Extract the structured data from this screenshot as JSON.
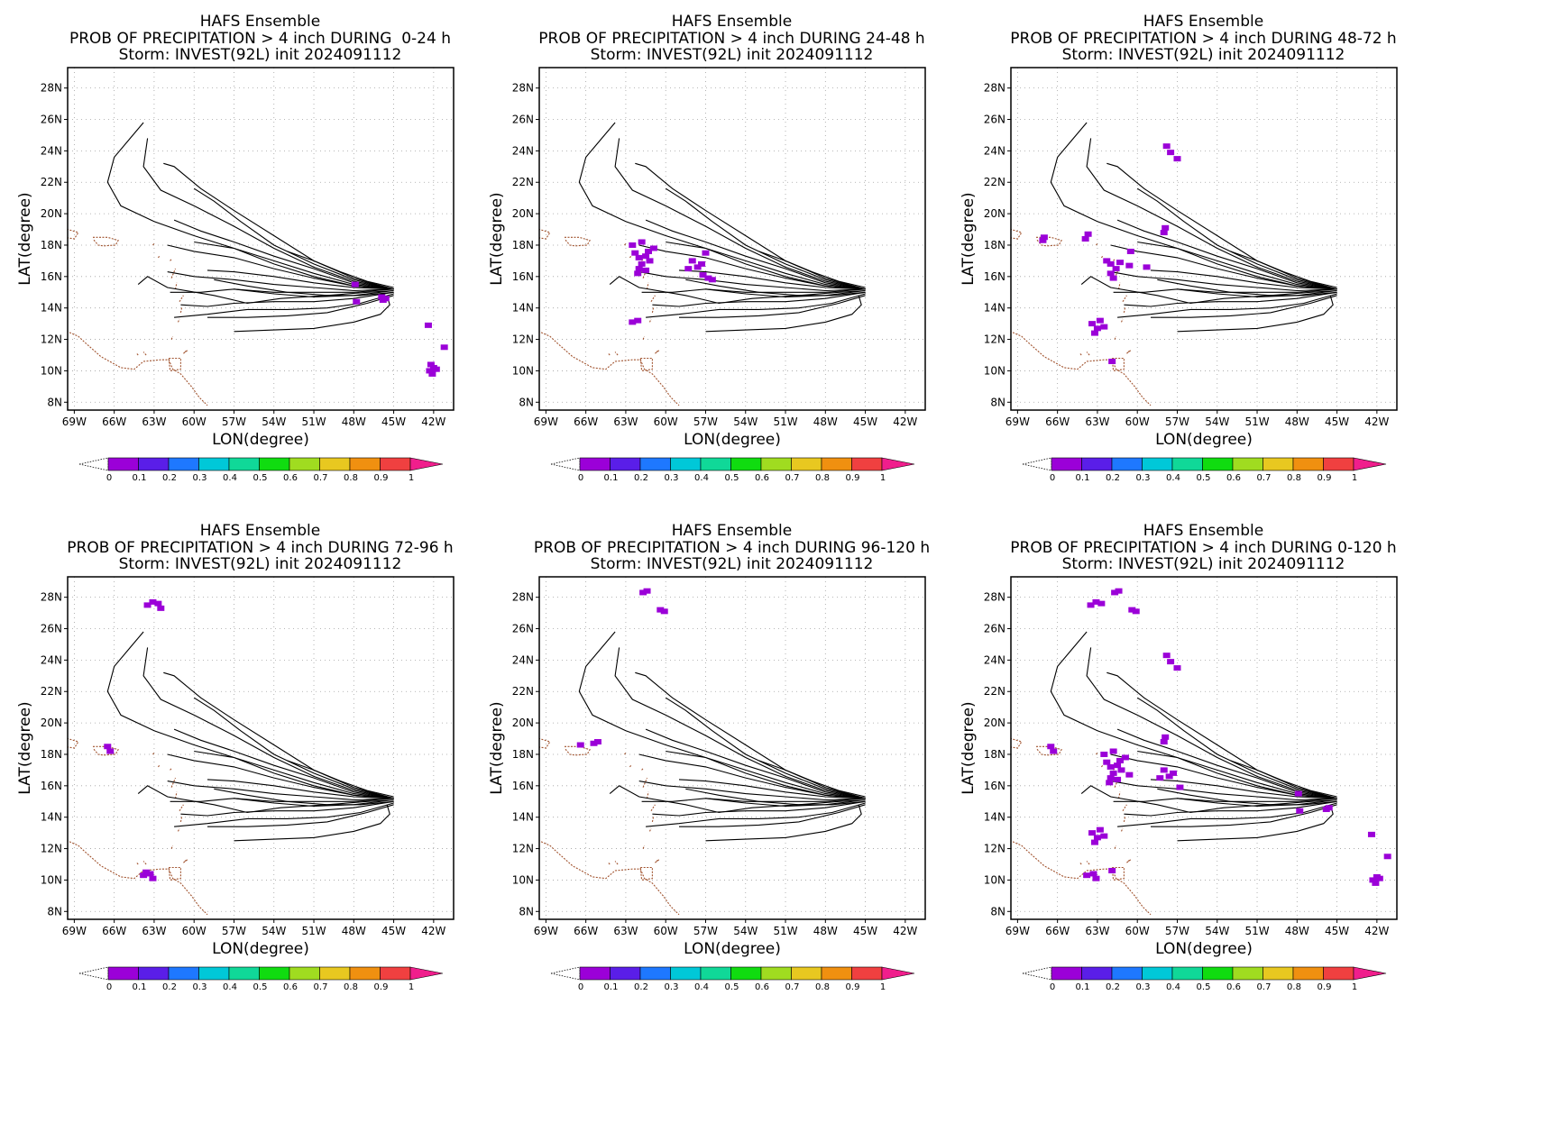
{
  "panel_common": {
    "title": "HAFS Ensemble",
    "storm_line": "Storm: INVEST(92L) init 2024091112",
    "xlabel": "LON(degree)",
    "ylabel": "LAT(degree)",
    "x_ticks": [
      "69W",
      "66W",
      "63W",
      "60W",
      "57W",
      "54W",
      "51W",
      "48W",
      "45W",
      "42W"
    ],
    "y_ticks": [
      "8N",
      "10N",
      "12N",
      "14N",
      "16N",
      "18N",
      "20N",
      "22N",
      "24N",
      "26N",
      "28N"
    ],
    "colorbar_ticks": [
      "0",
      "0.1",
      "0.2",
      "0.3",
      "0.4",
      "0.5",
      "0.6",
      "0.7",
      "0.8",
      "0.9",
      "1"
    ],
    "colorbar_colors": [
      "#9b00d8",
      "#5a1ee8",
      "#1e78ff",
      "#00c8d8",
      "#10d898",
      "#10dc10",
      "#a0dc20",
      "#e8c820",
      "#f09010",
      "#f04040"
    ],
    "overflow_color": "#f01e8c",
    "track_color": "#000000",
    "coast_color": "#a0522d",
    "prob_color": "#9b00d8"
  },
  "panels": [
    {
      "title_line2": "PROB OF PRECIPITATION > 4 inch DURING  0-24 h"
    },
    {
      "title_line2": "PROB OF PRECIPITATION > 4 inch DURING 24-48 h"
    },
    {
      "title_line2": "PROB OF PRECIPITATION > 4 inch DURING 48-72 h"
    },
    {
      "title_line2": "PROB OF PRECIPITATION > 4 inch DURING 72-96 h"
    },
    {
      "title_line2": "PROB OF PRECIPITATION > 4 inch DURING 96-120 h"
    },
    {
      "title_line2": "PROB OF PRECIPITATION > 4 inch DURING 0-120 h"
    }
  ],
  "chart_data": {
    "type": "map",
    "xlim": [
      -69.5,
      -40.5
    ],
    "ylim": [
      7.5,
      29.3
    ],
    "grid": true,
    "tracks": [
      [
        [
          -45.0,
          15.2
        ],
        [
          -48,
          15.6
        ],
        [
          -51,
          16.5
        ],
        [
          -54,
          17.3
        ],
        [
          -57,
          18.2
        ],
        [
          -59.5,
          18.9
        ],
        [
          -61.5,
          19.6
        ]
      ],
      [
        [
          -45.0,
          15.2
        ],
        [
          -48,
          15.8
        ],
        [
          -51,
          16.8
        ],
        [
          -54,
          18.0
        ],
        [
          -56.5,
          19.5
        ],
        [
          -58.5,
          20.8
        ],
        [
          -60.0,
          21.6
        ]
      ],
      [
        [
          -45.0,
          15.2
        ],
        [
          -48,
          15.9
        ],
        [
          -51,
          17.0
        ],
        [
          -54,
          18.6
        ],
        [
          -57,
          20.2
        ],
        [
          -59.5,
          21.6
        ],
        [
          -61.5,
          23.0
        ],
        [
          -62.3,
          23.2
        ]
      ],
      [
        [
          -45.0,
          15.2
        ],
        [
          -48,
          15.7
        ],
        [
          -51,
          16.6
        ],
        [
          -54,
          17.8
        ],
        [
          -57,
          19.2
        ],
        [
          -60,
          20.5
        ],
        [
          -62.5,
          21.5
        ],
        [
          -63.8,
          23.0
        ],
        [
          -63.5,
          24.8
        ]
      ],
      [
        [
          -45.0,
          15.2
        ],
        [
          -48,
          15.5
        ],
        [
          -51,
          16.2
        ],
        [
          -54,
          17.0
        ],
        [
          -57,
          17.8
        ],
        [
          -60,
          18.2
        ]
      ],
      [
        [
          -45.0,
          15.2
        ],
        [
          -48,
          15.4
        ],
        [
          -51,
          15.9
        ],
        [
          -54,
          16.5
        ],
        [
          -57,
          17.2
        ],
        [
          -60,
          17.6
        ],
        [
          -62,
          18.0
        ]
      ],
      [
        [
          -45.0,
          15.2
        ],
        [
          -48,
          15.4
        ],
        [
          -51,
          16.0
        ],
        [
          -54,
          16.8
        ],
        [
          -57,
          17.8
        ],
        [
          -60,
          18.6
        ],
        [
          -63,
          19.5
        ],
        [
          -65.5,
          20.5
        ],
        [
          -66.5,
          22.0
        ],
        [
          -66.0,
          23.6
        ],
        [
          -64.8,
          24.8
        ],
        [
          -63.8,
          25.8
        ]
      ],
      [
        [
          -45.0,
          15.2
        ],
        [
          -48,
          15.3
        ],
        [
          -51,
          15.6
        ],
        [
          -54,
          16.0
        ],
        [
          -57,
          16.3
        ],
        [
          -59,
          16.4
        ]
      ],
      [
        [
          -45.0,
          15.2
        ],
        [
          -48,
          15.1
        ],
        [
          -51,
          15.3
        ],
        [
          -54,
          15.5
        ],
        [
          -57,
          15.8
        ],
        [
          -60,
          16.0
        ],
        [
          -62,
          16.3
        ]
      ],
      [
        [
          -45.0,
          15.2
        ],
        [
          -48,
          15.0
        ],
        [
          -51,
          15.0
        ],
        [
          -54,
          15.0
        ],
        [
          -57,
          15.2
        ]
      ],
      [
        [
          -45.0,
          15.1
        ],
        [
          -48,
          14.8
        ],
        [
          -51,
          14.7
        ],
        [
          -54,
          14.9
        ],
        [
          -57,
          15.2
        ],
        [
          -59.5,
          15.0
        ],
        [
          -61.8,
          15.0
        ]
      ],
      [
        [
          -45.0,
          15.0
        ],
        [
          -48,
          14.6
        ],
        [
          -51,
          14.4
        ],
        [
          -54,
          14.4
        ],
        [
          -57,
          14.3
        ],
        [
          -59,
          14.1
        ],
        [
          -61,
          14.2
        ]
      ],
      [
        [
          -45.0,
          14.9
        ],
        [
          -47.5,
          14.3
        ],
        [
          -50,
          14.0
        ],
        [
          -53,
          13.9
        ],
        [
          -56,
          13.9
        ],
        [
          -59,
          13.6
        ],
        [
          -61.5,
          13.4
        ]
      ],
      [
        [
          -45.0,
          14.8
        ],
        [
          -47,
          14.3
        ],
        [
          -50,
          13.7
        ],
        [
          -53,
          13.5
        ],
        [
          -56,
          13.4
        ],
        [
          -59,
          13.4
        ]
      ],
      [
        [
          -45.0,
          15.0
        ],
        [
          -47.5,
          14.8
        ],
        [
          -50,
          14.8
        ],
        [
          -53,
          15.0
        ],
        [
          -56,
          15.4
        ],
        [
          -58.5,
          15.8
        ]
      ],
      [
        [
          -45.5,
          14.8
        ],
        [
          -45.3,
          14.2
        ],
        [
          -46,
          13.6
        ],
        [
          -48,
          13.1
        ],
        [
          -51,
          12.7
        ],
        [
          -54,
          12.6
        ],
        [
          -57,
          12.5
        ]
      ],
      [
        [
          -45.0,
          15.3
        ],
        [
          -47,
          15.7
        ],
        [
          -49,
          16.3
        ],
        [
          -51,
          17.0
        ],
        [
          -53,
          17.6
        ]
      ],
      [
        [
          -45.0,
          15.1
        ],
        [
          -47,
          15.0
        ],
        [
          -50,
          14.8
        ],
        [
          -53.5,
          14.6
        ],
        [
          -56,
          14.3
        ],
        [
          -58.5,
          14.8
        ],
        [
          -62,
          15.3
        ],
        [
          -63.5,
          16.0
        ],
        [
          -64.2,
          15.5
        ]
      ]
    ],
    "coastlines": [
      [
        [
          -67.6,
          18.5
        ],
        [
          -66.5,
          18.5
        ],
        [
          -65.7,
          18.3
        ],
        [
          -65.9,
          18.0
        ],
        [
          -66.8,
          17.95
        ],
        [
          -67.2,
          18.0
        ],
        [
          -67.6,
          18.4
        ]
      ],
      [
        [
          -69.8,
          18.5
        ],
        [
          -69.0,
          18.4
        ],
        [
          -68.7,
          18.8
        ],
        [
          -69.5,
          19.0
        ]
      ],
      [
        [
          -69.8,
          12.6
        ],
        [
          -68.7,
          12.2
        ],
        [
          -68.2,
          11.8
        ],
        [
          -67.0,
          10.9
        ],
        [
          -65.5,
          10.2
        ],
        [
          -64.5,
          10.1
        ],
        [
          -63.8,
          10.6
        ],
        [
          -62.5,
          10.7
        ],
        [
          -61.9,
          10.7
        ],
        [
          -61.6,
          10.1
        ],
        [
          -61.0,
          9.8
        ],
        [
          -60.2,
          9.0
        ],
        [
          -59.6,
          8.3
        ],
        [
          -59.0,
          7.8
        ]
      ],
      [
        [
          -61.9,
          10.8
        ],
        [
          -61.0,
          10.8
        ],
        [
          -61.0,
          10.1
        ],
        [
          -61.8,
          10.0
        ],
        [
          -61.9,
          10.8
        ]
      ],
      [
        [
          -60.8,
          11.1
        ],
        [
          -60.5,
          11.3
        ],
        [
          -60.7,
          11.2
        ]
      ],
      [
        [
          -61.7,
          12.0
        ],
        [
          -61.6,
          12.2
        ]
      ],
      [
        [
          -61.2,
          13.1
        ],
        [
          -61.1,
          13.3
        ]
      ],
      [
        [
          -61.0,
          13.7
        ],
        [
          -60.9,
          14.1
        ]
      ],
      [
        [
          -61.1,
          14.4
        ],
        [
          -60.8,
          14.8
        ]
      ],
      [
        [
          -61.4,
          15.2
        ],
        [
          -61.3,
          15.6
        ]
      ],
      [
        [
          -61.7,
          15.9
        ],
        [
          -61.4,
          16.5
        ]
      ],
      [
        [
          -61.8,
          17.0
        ],
        [
          -61.7,
          17.1
        ]
      ],
      [
        [
          -62.7,
          17.2
        ],
        [
          -62.6,
          17.3
        ]
      ],
      [
        [
          -63.1,
          18.0
        ],
        [
          -63.0,
          18.1
        ]
      ],
      [
        [
          -63.6,
          11.0
        ],
        [
          -63.8,
          11.2
        ]
      ],
      [
        [
          -64.2,
          11.0
        ],
        [
          -64.3,
          11.1
        ]
      ]
    ],
    "probability_blobs": [
      [
        [
          -45.8,
          14.5
        ],
        [
          -45.6,
          14.6
        ],
        [
          -45.9,
          14.7
        ],
        [
          -42.3,
          10.0
        ],
        [
          -42.1,
          9.8
        ],
        [
          -42.0,
          10.2
        ],
        [
          -42.2,
          10.4
        ],
        [
          -41.8,
          10.1
        ],
        [
          -42.4,
          12.9
        ],
        [
          -41.2,
          11.5
        ],
        [
          -47.8,
          14.4
        ],
        [
          -47.9,
          15.5
        ]
      ],
      [
        [
          -62.3,
          17.5
        ],
        [
          -62.0,
          17.2
        ],
        [
          -61.5,
          17.3
        ],
        [
          -61.8,
          16.8
        ],
        [
          -62.0,
          16.5
        ],
        [
          -61.2,
          17.0
        ],
        [
          -61.5,
          16.4
        ],
        [
          -62.5,
          18.0
        ],
        [
          -61.8,
          18.2
        ],
        [
          -60.9,
          17.8
        ],
        [
          -61.3,
          17.6
        ],
        [
          -62.1,
          16.2
        ],
        [
          -58.0,
          17.0
        ],
        [
          -57.6,
          16.6
        ],
        [
          -57.3,
          16.8
        ],
        [
          -58.3,
          16.5
        ],
        [
          -57.0,
          17.5
        ],
        [
          -56.5,
          15.8
        ],
        [
          -57.2,
          16.1
        ],
        [
          -62.5,
          13.1
        ],
        [
          -62.1,
          13.2
        ],
        [
          -56.8,
          15.9
        ]
      ],
      [
        [
          -62.3,
          17.0
        ],
        [
          -62.0,
          16.8
        ],
        [
          -61.6,
          16.5
        ],
        [
          -62.0,
          16.2
        ],
        [
          -61.3,
          16.9
        ],
        [
          -60.6,
          16.7
        ],
        [
          -61.8,
          15.9
        ],
        [
          -63.4,
          13.0
        ],
        [
          -63.0,
          12.7
        ],
        [
          -62.8,
          13.2
        ],
        [
          -62.5,
          12.8
        ],
        [
          -63.2,
          12.4
        ],
        [
          -57.8,
          24.3
        ],
        [
          -57.5,
          23.9
        ],
        [
          -57.0,
          23.5
        ],
        [
          -58.0,
          18.8
        ],
        [
          -57.9,
          19.1
        ],
        [
          -63.9,
          18.4
        ],
        [
          -63.7,
          18.7
        ],
        [
          -67.1,
          18.3
        ],
        [
          -67.0,
          18.5
        ],
        [
          -61.9,
          10.6
        ],
        [
          -60.5,
          17.6
        ],
        [
          -59.3,
          16.6
        ]
      ],
      [
        [
          -63.5,
          27.5
        ],
        [
          -63.1,
          27.7
        ],
        [
          -62.7,
          27.6
        ],
        [
          -62.5,
          27.3
        ],
        [
          -66.5,
          18.5
        ],
        [
          -66.3,
          18.2
        ],
        [
          -63.8,
          10.3
        ],
        [
          -63.3,
          10.4
        ],
        [
          -63.1,
          10.1
        ],
        [
          -63.6,
          10.5
        ]
      ],
      [
        [
          -61.7,
          28.3
        ],
        [
          -61.4,
          28.4
        ],
        [
          -60.4,
          27.2
        ],
        [
          -60.1,
          27.1
        ],
        [
          -65.4,
          18.7
        ],
        [
          -65.1,
          18.8
        ],
        [
          -66.4,
          18.6
        ]
      ],
      [
        [
          -62.3,
          17.5
        ],
        [
          -62.0,
          17.2
        ],
        [
          -61.5,
          17.3
        ],
        [
          -61.8,
          16.8
        ],
        [
          -62.0,
          16.5
        ],
        [
          -61.2,
          17.0
        ],
        [
          -61.5,
          16.4
        ],
        [
          -62.5,
          18.0
        ],
        [
          -61.8,
          18.2
        ],
        [
          -60.9,
          17.8
        ],
        [
          -61.3,
          17.6
        ],
        [
          -62.1,
          16.2
        ],
        [
          -60.6,
          16.7
        ],
        [
          -58.0,
          17.0
        ],
        [
          -57.6,
          16.6
        ],
        [
          -57.3,
          16.8
        ],
        [
          -58.3,
          16.5
        ],
        [
          -56.8,
          15.9
        ],
        [
          -63.4,
          13.0
        ],
        [
          -63.0,
          12.7
        ],
        [
          -62.8,
          13.2
        ],
        [
          -62.5,
          12.8
        ],
        [
          -63.2,
          12.4
        ],
        [
          -57.8,
          24.3
        ],
        [
          -57.5,
          23.9
        ],
        [
          -57.0,
          23.5
        ],
        [
          -58.0,
          18.8
        ],
        [
          -57.9,
          19.1
        ],
        [
          -63.5,
          27.5
        ],
        [
          -63.1,
          27.7
        ],
        [
          -62.7,
          27.6
        ],
        [
          -61.7,
          28.3
        ],
        [
          -61.4,
          28.4
        ],
        [
          -60.4,
          27.2
        ],
        [
          -60.1,
          27.1
        ],
        [
          -66.5,
          18.5
        ],
        [
          -66.3,
          18.2
        ],
        [
          -63.8,
          10.3
        ],
        [
          -63.3,
          10.4
        ],
        [
          -63.1,
          10.1
        ],
        [
          -61.9,
          10.6
        ],
        [
          -45.8,
          14.5
        ],
        [
          -45.6,
          14.6
        ],
        [
          -42.3,
          10.0
        ],
        [
          -42.1,
          9.8
        ],
        [
          -42.0,
          10.2
        ],
        [
          -41.8,
          10.1
        ],
        [
          -42.4,
          12.9
        ],
        [
          -41.2,
          11.5
        ],
        [
          -47.8,
          14.4
        ],
        [
          -47.9,
          15.5
        ]
      ]
    ]
  }
}
